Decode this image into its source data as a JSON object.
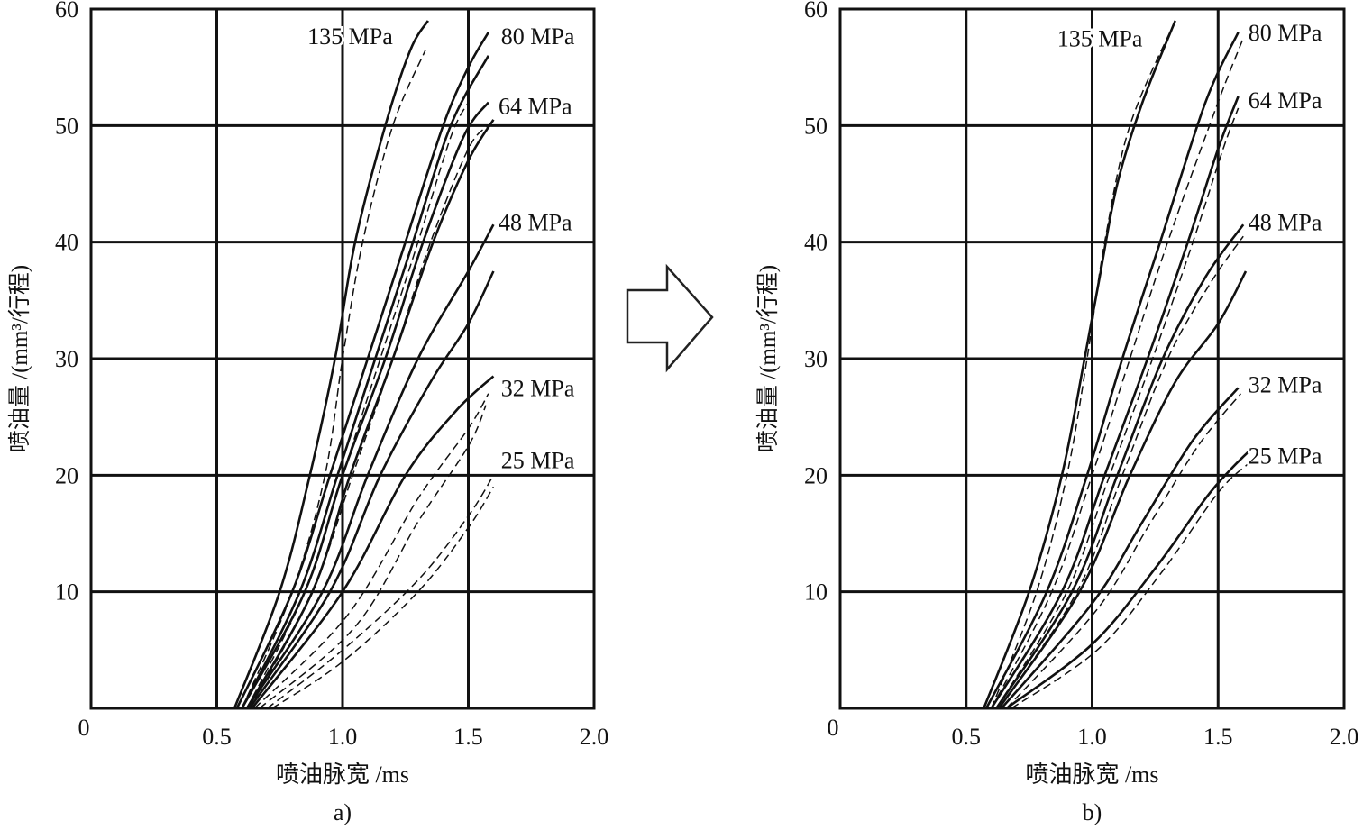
{
  "arrow_color": "#222222",
  "chart_data": [
    {
      "type": "line",
      "sublabel": "a)",
      "xlabel": "喷油脉宽 /ms",
      "ylabel": "喷油量 /(mm³/行程)",
      "xlim": [
        0,
        2.0
      ],
      "ylim": [
        0,
        60
      ],
      "grid": true,
      "origin_label": "0",
      "xticks": [
        {
          "v": 0.5,
          "label": "0.5"
        },
        {
          "v": 1.0,
          "label": "1.0"
        },
        {
          "v": 1.5,
          "label": "1.5"
        },
        {
          "v": 2.0,
          "label": "2.0"
        }
      ],
      "yticks": [
        {
          "v": 10,
          "label": "10"
        },
        {
          "v": 20,
          "label": "20"
        },
        {
          "v": 30,
          "label": "30"
        },
        {
          "v": 40,
          "label": "40"
        },
        {
          "v": 50,
          "label": "50"
        },
        {
          "v": 60,
          "label": "60"
        }
      ],
      "annotations": [
        {
          "text": "135 MPa",
          "x": 1.2,
          "y": 57,
          "anchor": "end"
        },
        {
          "text": "80 MPa",
          "x": 1.63,
          "y": 57,
          "anchor": "start"
        },
        {
          "text": "64 MPa",
          "x": 1.62,
          "y": 51,
          "anchor": "start"
        },
        {
          "text": "48 MPa",
          "x": 1.62,
          "y": 41,
          "anchor": "start"
        },
        {
          "text": "32 MPa",
          "x": 1.63,
          "y": 26.8,
          "anchor": "start"
        },
        {
          "text": "25 MPa",
          "x": 1.63,
          "y": 20.6,
          "anchor": "start"
        }
      ],
      "series": [
        {
          "name": "135 MPa measured",
          "style": "solid",
          "points": [
            [
              0.57,
              0
            ],
            [
              0.75,
              10
            ],
            [
              0.87,
              20
            ],
            [
              0.97,
              30
            ],
            [
              1.05,
              40
            ],
            [
              1.17,
              50
            ],
            [
              1.27,
              56.5
            ],
            [
              1.34,
              59
            ]
          ]
        },
        {
          "name": "80 MPa measured",
          "style": "solid",
          "points": [
            [
              0.58,
              0
            ],
            [
              0.8,
              10
            ],
            [
              0.95,
              20
            ],
            [
              1.1,
              30
            ],
            [
              1.25,
              40
            ],
            [
              1.4,
              50
            ],
            [
              1.5,
              55
            ],
            [
              1.58,
              58
            ]
          ]
        },
        {
          "name": "72 MPa measured",
          "style": "solid",
          "points": [
            [
              0.6,
              0
            ],
            [
              0.83,
              10
            ],
            [
              0.98,
              20
            ],
            [
              1.13,
              30
            ],
            [
              1.28,
              40
            ],
            [
              1.43,
              50
            ],
            [
              1.58,
              56
            ]
          ]
        },
        {
          "name": "64 MPa measured",
          "style": "solid",
          "points": [
            [
              0.6,
              0
            ],
            [
              0.85,
              10
            ],
            [
              1.0,
              20
            ],
            [
              1.17,
              30
            ],
            [
              1.32,
              40
            ],
            [
              1.48,
              49
            ],
            [
              1.58,
              52
            ]
          ]
        },
        {
          "name": "56 MPa measured",
          "style": "solid",
          "points": [
            [
              0.62,
              0
            ],
            [
              0.88,
              10
            ],
            [
              1.03,
              20
            ],
            [
              1.2,
              30
            ],
            [
              1.36,
              40
            ],
            [
              1.5,
              47
            ],
            [
              1.6,
              50.5
            ]
          ]
        },
        {
          "name": "48 MPa measured",
          "style": "solid",
          "points": [
            [
              0.62,
              0
            ],
            [
              0.92,
              10
            ],
            [
              1.1,
              20
            ],
            [
              1.3,
              30
            ],
            [
              1.5,
              37.5
            ],
            [
              1.6,
              41.5
            ]
          ]
        },
        {
          "name": "40 MPa measured",
          "style": "solid",
          "points": [
            [
              0.63,
              0
            ],
            [
              0.95,
              10
            ],
            [
              1.15,
              20
            ],
            [
              1.35,
              28
            ],
            [
              1.5,
              33
            ],
            [
              1.6,
              37.5
            ]
          ]
        },
        {
          "name": "32 MPa measured",
          "style": "solid",
          "points": [
            [
              0.64,
              0
            ],
            [
              1.0,
              10
            ],
            [
              1.25,
              20
            ],
            [
              1.45,
              25.5
            ],
            [
              1.6,
              28.5
            ]
          ]
        },
        {
          "name": "135 MPa simulated",
          "style": "dashed",
          "points": [
            [
              0.6,
              0
            ],
            [
              0.8,
              10
            ],
            [
              0.93,
              20
            ],
            [
              1.0,
              30
            ],
            [
              1.08,
              40
            ],
            [
              1.2,
              50
            ],
            [
              1.33,
              56.5
            ]
          ]
        },
        {
          "name": "80 MPa simulated",
          "style": "dashed",
          "points": [
            [
              0.62,
              0
            ],
            [
              0.85,
              10
            ],
            [
              1.0,
              20
            ],
            [
              1.15,
              30
            ],
            [
              1.3,
              40
            ],
            [
              1.43,
              49
            ],
            [
              1.5,
              52
            ]
          ]
        },
        {
          "name": "64 MPa simulated",
          "style": "dashed",
          "points": [
            [
              0.63,
              0
            ],
            [
              0.88,
              10
            ],
            [
              1.04,
              20
            ],
            [
              1.2,
              30
            ],
            [
              1.35,
              40
            ],
            [
              1.5,
              48
            ],
            [
              1.58,
              50
            ]
          ]
        },
        {
          "name": "32 MPa simulated",
          "style": "dashed",
          "points": [
            [
              0.65,
              0
            ],
            [
              1.02,
              8
            ],
            [
              1.3,
              18
            ],
            [
              1.5,
              24
            ],
            [
              1.58,
              27
            ]
          ]
        },
        {
          "name": "32 MPa simulated 2",
          "style": "dashed",
          "points": [
            [
              0.67,
              0
            ],
            [
              1.05,
              7
            ],
            [
              1.3,
              16
            ],
            [
              1.5,
              22.5
            ],
            [
              1.57,
              26
            ]
          ]
        },
        {
          "name": "25 MPa simulated",
          "style": "dashed",
          "points": [
            [
              0.7,
              0
            ],
            [
              1.0,
              5
            ],
            [
              1.3,
              11
            ],
            [
              1.5,
              16.5
            ],
            [
              1.6,
              20
            ]
          ]
        },
        {
          "name": "25 MPa simulated 2",
          "style": "dashed",
          "points": [
            [
              0.72,
              0
            ],
            [
              1.0,
              4
            ],
            [
              1.3,
              10
            ],
            [
              1.5,
              15.5
            ],
            [
              1.6,
              19
            ]
          ]
        }
      ]
    },
    {
      "type": "line",
      "sublabel": "b)",
      "xlabel": "喷油脉宽 /ms",
      "ylabel": "喷油量 /(mm³/行程)",
      "xlim": [
        0,
        2.0
      ],
      "ylim": [
        0,
        60
      ],
      "grid": true,
      "origin_label": "0",
      "xticks": [
        {
          "v": 0.5,
          "label": "0.5"
        },
        {
          "v": 1.0,
          "label": "1.0"
        },
        {
          "v": 1.5,
          "label": "1.5"
        },
        {
          "v": 2.0,
          "label": "2.0"
        }
      ],
      "yticks": [
        {
          "v": 10,
          "label": "10"
        },
        {
          "v": 20,
          "label": "20"
        },
        {
          "v": 30,
          "label": "30"
        },
        {
          "v": 40,
          "label": "40"
        },
        {
          "v": 50,
          "label": "50"
        },
        {
          "v": 60,
          "label": "60"
        }
      ],
      "annotations": [
        {
          "text": "135 MPa",
          "x": 1.2,
          "y": 56.8,
          "anchor": "end"
        },
        {
          "text": "80 MPa",
          "x": 1.62,
          "y": 57.3,
          "anchor": "start"
        },
        {
          "text": "64 MPa",
          "x": 1.62,
          "y": 51.5,
          "anchor": "start"
        },
        {
          "text": "48 MPa",
          "x": 1.62,
          "y": 41,
          "anchor": "start"
        },
        {
          "text": "32 MPa",
          "x": 1.62,
          "y": 27.1,
          "anchor": "start"
        },
        {
          "text": "25 MPa",
          "x": 1.62,
          "y": 21,
          "anchor": "start"
        }
      ],
      "series": [
        {
          "name": "135 MPa measured",
          "style": "solid",
          "points": [
            [
              0.57,
              0
            ],
            [
              0.75,
              10
            ],
            [
              0.88,
              20
            ],
            [
              0.97,
              30
            ],
            [
              1.03,
              37
            ],
            [
              1.1,
              45
            ],
            [
              1.2,
              52
            ],
            [
              1.33,
              59
            ]
          ]
        },
        {
          "name": "80 MPa measured",
          "style": "solid",
          "points": [
            [
              0.58,
              0
            ],
            [
              0.82,
              10
            ],
            [
              0.98,
              20
            ],
            [
              1.12,
              30
            ],
            [
              1.27,
              40
            ],
            [
              1.45,
              52
            ],
            [
              1.58,
              58
            ]
          ]
        },
        {
          "name": "64 MPa measured",
          "style": "solid",
          "points": [
            [
              0.6,
              0
            ],
            [
              0.88,
              10
            ],
            [
              1.05,
              20
            ],
            [
              1.22,
              30
            ],
            [
              1.38,
              40
            ],
            [
              1.5,
              48
            ],
            [
              1.58,
              52.5
            ]
          ]
        },
        {
          "name": "48 MPa measured",
          "style": "solid",
          "points": [
            [
              0.62,
              0
            ],
            [
              0.92,
              10
            ],
            [
              1.1,
              20
            ],
            [
              1.28,
              30
            ],
            [
              1.45,
              37
            ],
            [
              1.6,
              41.5
            ]
          ]
        },
        {
          "name": "40 MPa measured",
          "style": "solid",
          "points": [
            [
              0.63,
              0
            ],
            [
              0.95,
              10
            ],
            [
              1.15,
              20
            ],
            [
              1.33,
              28
            ],
            [
              1.5,
              33
            ],
            [
              1.61,
              37.5
            ]
          ]
        },
        {
          "name": "32 MPa measured",
          "style": "solid",
          "points": [
            [
              0.64,
              0
            ],
            [
              1.0,
              9
            ],
            [
              1.2,
              16
            ],
            [
              1.4,
              23
            ],
            [
              1.58,
              27.5
            ]
          ]
        },
        {
          "name": "25 MPa measured",
          "style": "solid",
          "points": [
            [
              0.66,
              0
            ],
            [
              1.0,
              5.5
            ],
            [
              1.25,
              12
            ],
            [
              1.45,
              18
            ],
            [
              1.55,
              20.5
            ],
            [
              1.62,
              22
            ]
          ]
        },
        {
          "name": "135 MPa simulated",
          "style": "dashed",
          "points": [
            [
              0.6,
              0
            ],
            [
              0.78,
              10
            ],
            [
              0.9,
              20
            ],
            [
              0.98,
              30
            ],
            [
              1.05,
              40
            ],
            [
              1.15,
              50
            ],
            [
              1.33,
              59
            ]
          ]
        },
        {
          "name": "80 MPa simulated",
          "style": "dashed",
          "points": [
            [
              0.6,
              0
            ],
            [
              0.84,
              10
            ],
            [
              1.0,
              20
            ],
            [
              1.15,
              30
            ],
            [
              1.3,
              40
            ],
            [
              1.5,
              52
            ],
            [
              1.6,
              57.5
            ]
          ]
        },
        {
          "name": "64 MPa simulated",
          "style": "dashed",
          "points": [
            [
              0.62,
              0
            ],
            [
              0.9,
              10
            ],
            [
              1.07,
              20
            ],
            [
              1.24,
              30
            ],
            [
              1.4,
              40
            ],
            [
              1.52,
              48
            ],
            [
              1.58,
              51.5
            ]
          ]
        },
        {
          "name": "48 MPa simulated",
          "style": "dashed",
          "points": [
            [
              0.63,
              0
            ],
            [
              0.94,
              10
            ],
            [
              1.12,
              20
            ],
            [
              1.3,
              30
            ],
            [
              1.47,
              36.5
            ],
            [
              1.6,
              40.5
            ]
          ]
        },
        {
          "name": "32 MPa simulated",
          "style": "dashed",
          "points": [
            [
              0.66,
              0
            ],
            [
              1.02,
              8.5
            ],
            [
              1.22,
              15.5
            ],
            [
              1.42,
              22.5
            ],
            [
              1.59,
              27
            ]
          ]
        },
        {
          "name": "25 MPa simulated",
          "style": "dashed",
          "points": [
            [
              0.68,
              0
            ],
            [
              1.02,
              5
            ],
            [
              1.27,
              11.5
            ],
            [
              1.5,
              18.5
            ],
            [
              1.62,
              21
            ]
          ]
        }
      ]
    }
  ]
}
